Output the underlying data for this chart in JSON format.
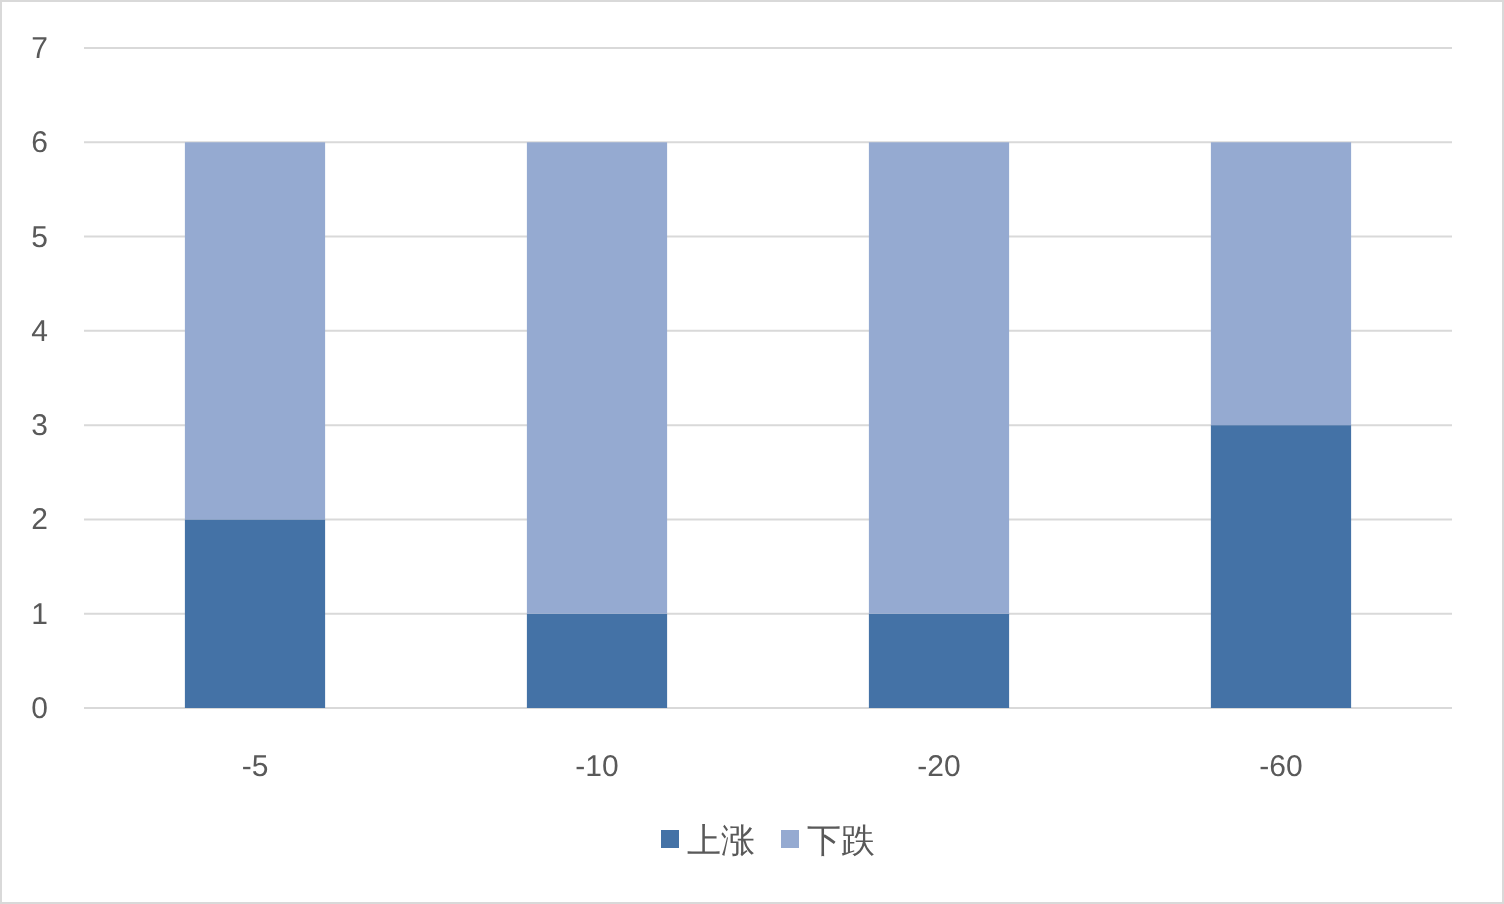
{
  "chart_data": {
    "type": "bar",
    "stacked": true,
    "categories": [
      "-5",
      "-10",
      "-20",
      "-60"
    ],
    "series": [
      {
        "name": "上涨",
        "color": "#4472a6",
        "values": [
          2,
          1,
          1,
          3
        ]
      },
      {
        "name": "下跌",
        "color": "#95aad1",
        "values": [
          4,
          5,
          5,
          3
        ]
      }
    ],
    "ylim": [
      0,
      7
    ],
    "yticks": [
      0,
      1,
      2,
      3,
      4,
      5,
      6,
      7
    ],
    "grid": "y",
    "legend": "bottom"
  }
}
